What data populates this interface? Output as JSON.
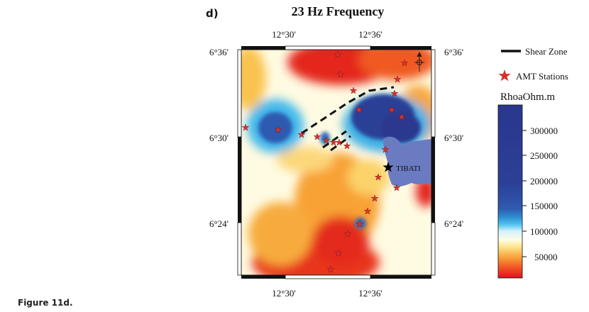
{
  "figure": {
    "panel_label": "d)",
    "title": "23 Hz Frequency",
    "caption": "Figure 11d."
  },
  "map": {
    "top_ticks": [
      "12°30'",
      "12°36'"
    ],
    "bottom_ticks": [
      "12°30'",
      "12°36'"
    ],
    "left_ticks": [
      "6°36'",
      "6°30'",
      "6°24'"
    ],
    "right_ticks": [
      "6°36'",
      "6°30'",
      "6°24'"
    ],
    "city_label": "TIBATI",
    "north_arrow_icon": "north-arrow-icon",
    "city_icon": "black-star-icon",
    "station_icon": "red-star-icon"
  },
  "legend": {
    "shear_zone_label": "Shear Zone",
    "stations_label": "AMT Stations",
    "colorbar_title": "RhoaOhm.m",
    "colorbar_ticks": [
      "300000",
      "250000",
      "200000",
      "150000",
      "100000",
      "50000"
    ],
    "colors": {
      "low": "#e8121e",
      "mid_low": "#f6a53a",
      "neutral": "#fffde0",
      "mid_high": "#2fb6e6",
      "high": "#2a3a8e"
    }
  }
}
